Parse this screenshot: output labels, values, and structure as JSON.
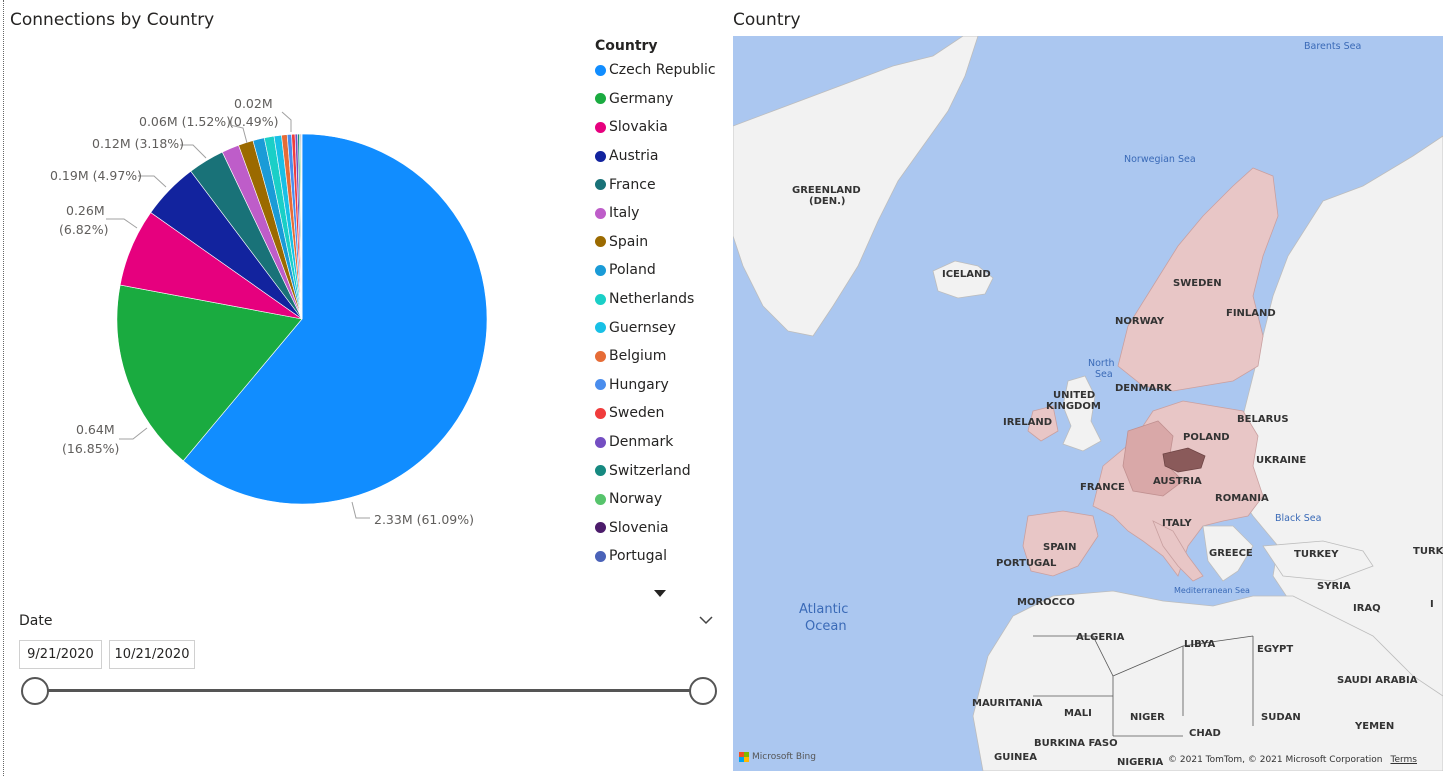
{
  "chart_title": "Connections by Country",
  "map_title": "Country",
  "chart_data": {
    "type": "pie",
    "legend_title": "Country",
    "legend_position": "right",
    "slices": [
      {
        "name": "Czech Republic",
        "share": 61.09,
        "color": "#118DFF",
        "label": "2.33M (61.09%)"
      },
      {
        "name": "Germany",
        "share": 16.85,
        "color": "#1AAB40",
        "label_line1": "0.64M",
        "label_line2": "(16.85%)"
      },
      {
        "name": "Slovakia",
        "share": 6.82,
        "color": "#E6007E",
        "label_line1": "0.26M",
        "label_line2": "(6.82%)"
      },
      {
        "name": "Austria",
        "share": 4.97,
        "color": "#12239E",
        "label": "0.19M (4.97%)"
      },
      {
        "name": "France",
        "share": 3.18,
        "color": "#197278",
        "label": "0.12M (3.18%)"
      },
      {
        "name": "Italy",
        "share": 1.52,
        "color": "#BE5DC9",
        "label": "0.06M (1.52%)"
      },
      {
        "name": "Spain",
        "share": 1.3,
        "color": "#9B6A00",
        "label": ""
      },
      {
        "name": "Poland",
        "share": 1.0,
        "color": "#1A9BD7",
        "label": ""
      },
      {
        "name": "Netherlands",
        "share": 0.85,
        "color": "#1ACFC7",
        "label": ""
      },
      {
        "name": "Guernsey",
        "share": 0.65,
        "color": "#18C0E6",
        "label": ""
      },
      {
        "name": "Belgium",
        "share": 0.49,
        "color": "#E66C37",
        "label": "0.02M",
        "label_pct": "(0.49%)"
      },
      {
        "name": "Hungary",
        "share": 0.38,
        "color": "#4A8DED",
        "label": ""
      },
      {
        "name": "Sweden",
        "share": 0.3,
        "color": "#F03C3C",
        "label": ""
      },
      {
        "name": "Denmark",
        "share": 0.22,
        "color": "#744EC2",
        "label": ""
      },
      {
        "name": "Switzerland",
        "share": 0.15,
        "color": "#168980",
        "label": ""
      },
      {
        "name": "Norway",
        "share": 0.1,
        "color": "#57C46C",
        "label": ""
      },
      {
        "name": "Slovenia",
        "share": 0.07,
        "color": "#4C1C6B",
        "label": ""
      },
      {
        "name": "Portugal",
        "share": 0.06,
        "color": "#4A62B8",
        "label": ""
      }
    ]
  },
  "slicer": {
    "title": "Date",
    "start_date": "9/21/2020",
    "end_date": "10/21/2020"
  },
  "map": {
    "labels": {
      "greenland_1": "GREENLAND",
      "greenland_2": "(DEN.)",
      "iceland": "ICELAND",
      "sweden": "SWEDEN",
      "finland": "FINLAND",
      "norway": "NORWAY",
      "denmark": "DENMARK",
      "uk_1": "UNITED",
      "uk_2": "KINGDOM",
      "ireland": "IRELAND",
      "belarus": "BELARUS",
      "poland": "POLAND",
      "ukraine": "UKRAINE",
      "france": "FRANCE",
      "austria": "AUSTRIA",
      "romania": "ROMANIA",
      "italy": "ITALY",
      "spain": "SPAIN",
      "portugal": "PORTUGAL",
      "greece": "GREECE",
      "turkey": "TURKEY",
      "turkmenistan": "TURKM",
      "morocco": "MOROCCO",
      "algeria": "ALGERIA",
      "libya": "LIBYA",
      "egypt": "EGYPT",
      "syria": "SYRIA",
      "iraq": "IRAQ",
      "iran": "I",
      "saudi_arabia": "SAUDI ARABIA",
      "mauritania": "MAURITANIA",
      "mali": "MALI",
      "niger": "NIGER",
      "chad": "CHAD",
      "sudan": "SUDAN",
      "yemen": "YEMEN",
      "guinea": "GUINEA",
      "burkina_faso": "BURKINA FASO",
      "nigeria": "NIGERIA"
    },
    "seas": {
      "barents": "Barents Sea",
      "norwegian": "Norwegian Sea",
      "north_1": "North",
      "north_2": "Sea",
      "black": "Black Sea",
      "mediterranean": "Mediterranean Sea",
      "atlantic_1": "Atlantic",
      "atlantic_2": "Ocean"
    },
    "provider": "Microsoft Bing",
    "copyright": "© 2021 TomTom, © 2021 Microsoft Corporation",
    "terms": "Terms"
  }
}
